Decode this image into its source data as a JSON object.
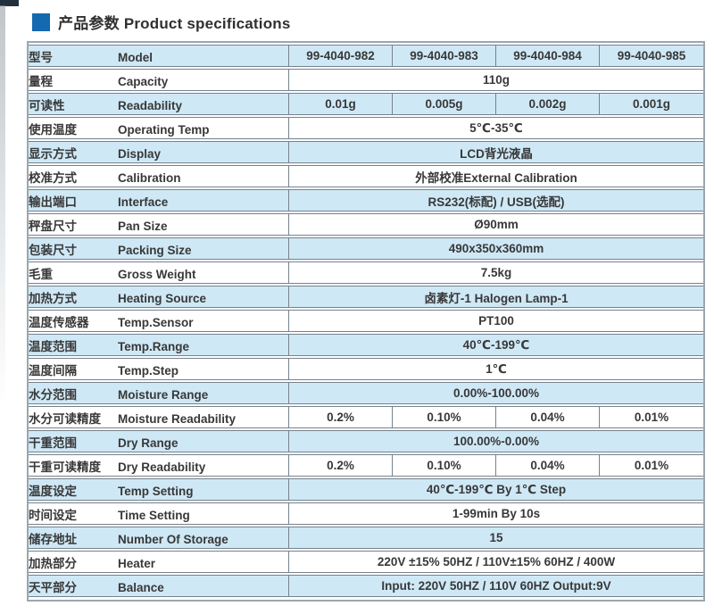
{
  "header": {
    "title_cn": "产品参数",
    "title_en": "Product specifications"
  },
  "colors": {
    "accent_blue": "#1569ae",
    "row_blue": "#cfe8f6",
    "row_white": "#ffffff",
    "grid_line": "#75828c",
    "outer_border": "#9aa7af",
    "text": "#383838"
  },
  "table": {
    "rows": [
      {
        "label_cn": "型号",
        "label_en": "Model",
        "values": [
          "99-4040-982",
          "99-4040-983",
          "99-4040-984",
          "99-4040-985"
        ]
      },
      {
        "label_cn": "量程",
        "label_en": "Capacity",
        "value": "110g"
      },
      {
        "label_cn": "可读性",
        "label_en": "Readability",
        "values": [
          "0.01g",
          "0.005g",
          "0.002g",
          "0.001g"
        ]
      },
      {
        "label_cn": "使用温度",
        "label_en": "Operating Temp",
        "value": "5℃-35℃"
      },
      {
        "label_cn": "显示方式",
        "label_en": "Display",
        "value": "LCD背光液晶"
      },
      {
        "label_cn": "校准方式",
        "label_en": "Calibration",
        "value": "外部校准External Calibration"
      },
      {
        "label_cn": "输出端口",
        "label_en": "Interface",
        "value": "RS232(标配) / USB(选配)"
      },
      {
        "label_cn": "秤盘尺寸",
        "label_en": "Pan Size",
        "value": "Ø90mm"
      },
      {
        "label_cn": "包装尺寸",
        "label_en": "Packing Size",
        "value": "490x350x360mm"
      },
      {
        "label_cn": "毛重",
        "label_en": "Gross Weight",
        "value": "7.5kg"
      },
      {
        "label_cn": "加热方式",
        "label_en": "Heating Source",
        "value": "卤素灯-1 Halogen Lamp-1"
      },
      {
        "label_cn": "温度传感器",
        "label_en": "Temp.Sensor",
        "value": "PT100"
      },
      {
        "label_cn": "温度范围",
        "label_en": "Temp.Range",
        "value": "40℃-199℃"
      },
      {
        "label_cn": "温度间隔",
        "label_en": "Temp.Step",
        "value": "1℃"
      },
      {
        "label_cn": "水分范围",
        "label_en": "Moisture Range",
        "value": "0.00%-100.00%"
      },
      {
        "label_cn": "水分可读精度",
        "label_en": "Moisture Readability",
        "values": [
          "0.2%",
          "0.10%",
          "0.04%",
          "0.01%"
        ]
      },
      {
        "label_cn": "干重范围",
        "label_en": "Dry Range",
        "value": "100.00%-0.00%"
      },
      {
        "label_cn": "干重可读精度",
        "label_en": "Dry Readability",
        "values": [
          "0.2%",
          "0.10%",
          "0.04%",
          "0.01%"
        ]
      },
      {
        "label_cn": "温度设定",
        "label_en": "Temp Setting",
        "value": "40℃-199℃  By  1℃ Step"
      },
      {
        "label_cn": "时间设定",
        "label_en": "Time Setting",
        "value": "1-99min  By  10s"
      },
      {
        "label_cn": "储存地址",
        "label_en": "Number Of Storage",
        "value": "15"
      },
      {
        "label_cn": "加热部分",
        "label_en": "Heater",
        "value": "220V ±15%  50HZ / 110V±15%  60HZ / 400W"
      },
      {
        "label_cn": "天平部分",
        "label_en": "Balance",
        "value": "Input: 220V  50HZ / 110V  60HZ    Output:9V"
      }
    ]
  }
}
